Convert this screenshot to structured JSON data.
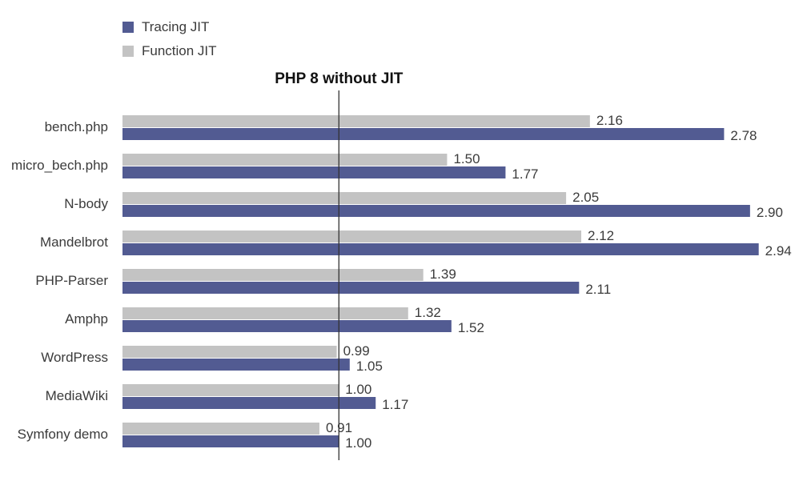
{
  "chart_data": {
    "type": "bar",
    "orientation": "horizontal",
    "categories": [
      "bench.php",
      "micro_bech.php",
      "N-body",
      "Mandelbrot",
      "PHP-Parser",
      "Amphp",
      "WordPress",
      "MediaWiki",
      "Symfony demo"
    ],
    "series": [
      {
        "name": "Function JIT",
        "color": "#c3c3c3",
        "values": [
          2.16,
          1.5,
          2.05,
          2.12,
          1.39,
          1.32,
          0.99,
          1.0,
          0.91
        ],
        "labels": [
          "2.16",
          "1.50",
          "2.05",
          "2.12",
          "1.39",
          "1.32",
          "0.99",
          "1.00",
          "0.91"
        ]
      },
      {
        "name": "Tracing JIT",
        "color": "#525b92",
        "values": [
          2.78,
          1.77,
          2.9,
          2.94,
          2.11,
          1.52,
          1.05,
          1.17,
          1.0
        ],
        "labels": [
          "2.78",
          "1.77",
          "2.90",
          "2.94",
          "2.11",
          "1.52",
          "1.05",
          "1.17",
          "1.00"
        ]
      }
    ],
    "legend": {
      "position": "top-left",
      "items": [
        {
          "name": "Tracing JIT",
          "color": "#525b92"
        },
        {
          "name": "Function JIT",
          "color": "#c3c3c3"
        }
      ]
    },
    "reference_line": {
      "value": 1.0,
      "label": "PHP 8 without JIT",
      "color": "#333333"
    },
    "xlim": [
      0,
      3
    ],
    "title": "",
    "xlabel": "",
    "ylabel": "",
    "grid": false
  }
}
